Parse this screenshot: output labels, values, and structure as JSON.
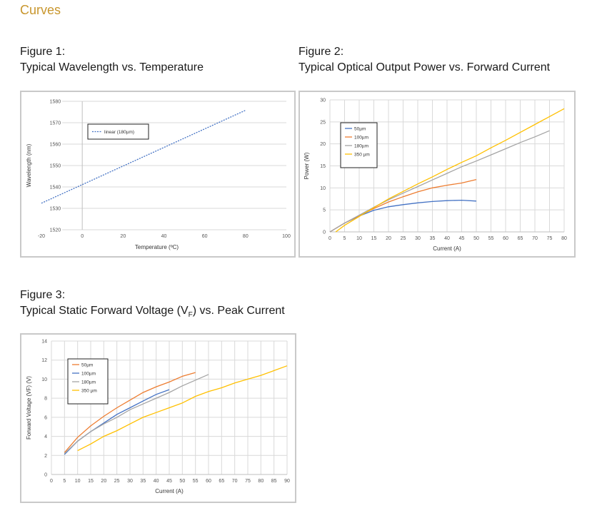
{
  "page": {
    "section_title": "Curves"
  },
  "figures": [
    {
      "caption_number": "Figure 1:",
      "caption_title": "Typical Wavelength vs. Temperature"
    },
    {
      "caption_number": "Figure 2:",
      "caption_title": "Typical Optical Output Power vs. Forward Current"
    },
    {
      "caption_number": "Figure 3:",
      "caption_title_prefix": "Typical Static Forward Voltage (V",
      "caption_title_sub": "F",
      "caption_title_suffix": ") vs. Peak Current"
    }
  ],
  "chart_data": [
    {
      "type": "line",
      "xlabel": "Temperature (ºC)",
      "ylabel": "Wavelength (nm)",
      "xlim": [
        -20,
        100
      ],
      "ylim": [
        1520,
        1580
      ],
      "x_ticks": [
        "-20",
        "0",
        "20",
        "40",
        "60",
        "80",
        "100"
      ],
      "y_ticks": [
        "1520",
        "1530",
        "1540",
        "1550",
        "1560",
        "1570",
        "1580"
      ],
      "grid": "horizontal",
      "legend_position": "top-left",
      "series": [
        {
          "name": "linear (180µm)",
          "color": "#4472c4",
          "dash": true,
          "x": [
            -20,
            80
          ],
          "y": [
            1532.4,
            1575.8
          ]
        }
      ]
    },
    {
      "type": "line",
      "xlabel": "Current (A)",
      "ylabel": "Power (W)",
      "xlim": [
        0,
        80
      ],
      "ylim": [
        0,
        30
      ],
      "x_ticks": [
        "0",
        "5",
        "10",
        "15",
        "20",
        "25",
        "30",
        "35",
        "40",
        "45",
        "50",
        "55",
        "60",
        "65",
        "70",
        "75",
        "80"
      ],
      "y_ticks": [
        "0",
        "5",
        "10",
        "15",
        "20",
        "25",
        "30"
      ],
      "grid": "both",
      "legend_position": "top-left",
      "series": [
        {
          "name": "50µm",
          "color": "#4472c4",
          "x": [
            0,
            5,
            10,
            15,
            20,
            25,
            30,
            35,
            40,
            45,
            50
          ],
          "y": [
            0,
            2.0,
            3.6,
            4.9,
            5.7,
            6.2,
            6.6,
            6.9,
            7.1,
            7.2,
            7.0
          ]
        },
        {
          "name": "100µm",
          "color": "#ed7d31",
          "x": [
            0,
            5,
            10,
            15,
            20,
            25,
            30,
            35,
            40,
            45,
            50
          ],
          "y": [
            0,
            2.0,
            3.7,
            5.3,
            6.8,
            8.0,
            9.1,
            10.0,
            10.6,
            11.1,
            11.9
          ]
        },
        {
          "name": "180µm",
          "color": "#a5a5a5",
          "x": [
            0,
            5,
            10,
            15,
            20,
            25,
            30,
            35,
            40,
            45,
            50,
            55,
            60,
            65,
            70,
            75
          ],
          "y": [
            0,
            2.0,
            3.8,
            5.6,
            7.3,
            8.8,
            10.3,
            11.8,
            13.3,
            14.8,
            16.1,
            17.5,
            18.9,
            20.3,
            21.6,
            23.0
          ]
        },
        {
          "name": "350 µm",
          "color": "#ffc000",
          "x": [
            2,
            5,
            10,
            15,
            20,
            25,
            30,
            35,
            40,
            45,
            50,
            55,
            60,
            65,
            70,
            75,
            80
          ],
          "y": [
            0,
            1.5,
            3.5,
            5.5,
            7.5,
            9.2,
            10.9,
            12.5,
            14.2,
            15.8,
            17.3,
            19.1,
            20.8,
            22.6,
            24.4,
            26.2,
            28.0
          ]
        }
      ]
    },
    {
      "type": "line",
      "xlabel": "Current (A)",
      "ylabel": "Forward Voltage (VF) (V)",
      "xlim": [
        0,
        90
      ],
      "ylim": [
        0,
        14
      ],
      "x_ticks": [
        "0",
        "5",
        "10",
        "15",
        "20",
        "25",
        "30",
        "35",
        "40",
        "45",
        "50",
        "55",
        "60",
        "65",
        "70",
        "75",
        "80",
        "85",
        "90"
      ],
      "y_ticks": [
        "0",
        "2",
        "4",
        "6",
        "8",
        "10",
        "12",
        "14"
      ],
      "grid": "both",
      "legend_position": "top-left",
      "series": [
        {
          "name": "50µm",
          "color": "#ed7d31",
          "x": [
            5,
            10,
            15,
            20,
            25,
            30,
            35,
            40,
            45,
            50,
            55
          ],
          "y": [
            2.3,
            3.9,
            5.1,
            6.1,
            7.0,
            7.8,
            8.6,
            9.2,
            9.7,
            10.3,
            10.7
          ]
        },
        {
          "name": "100µm",
          "color": "#4472c4",
          "x": [
            5,
            10,
            15,
            20,
            25,
            30,
            35,
            40,
            45
          ],
          "y": [
            2.1,
            3.5,
            4.5,
            5.4,
            6.3,
            7.0,
            7.7,
            8.4,
            8.9
          ]
        },
        {
          "name": "180µm",
          "color": "#a5a5a5",
          "x": [
            5,
            10,
            15,
            20,
            25,
            30,
            35,
            40,
            45,
            50,
            55,
            60
          ],
          "y": [
            2.2,
            3.5,
            4.5,
            5.3,
            6.0,
            6.8,
            7.4,
            8.0,
            8.6,
            9.3,
            9.9,
            10.5
          ]
        },
        {
          "name": "350 µm",
          "color": "#ffc000",
          "x": [
            10,
            15,
            20,
            25,
            30,
            35,
            40,
            45,
            50,
            55,
            60,
            65,
            70,
            75,
            80,
            85,
            90
          ],
          "y": [
            2.5,
            3.2,
            4.0,
            4.6,
            5.3,
            6.0,
            6.5,
            7.0,
            7.5,
            8.2,
            8.7,
            9.1,
            9.6,
            10.0,
            10.4,
            10.9,
            11.4
          ]
        }
      ]
    }
  ]
}
